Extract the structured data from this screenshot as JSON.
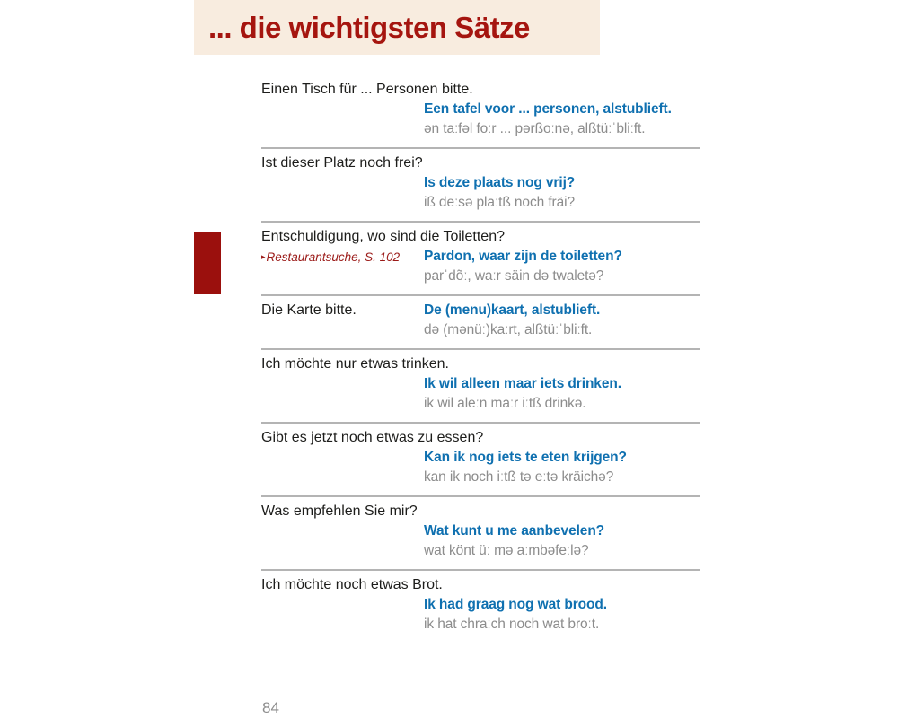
{
  "header": {
    "title": "... die wichtigsten Sätze"
  },
  "footer": {
    "page_number": "84"
  },
  "icons": {
    "crossref_arrow": "▸"
  },
  "colors": {
    "banner_bg": "#f8ecdf",
    "title_red": "#a5150f",
    "tab_red": "#9b100d",
    "dutch_blue": "#0f70b0",
    "phonetic_gray": "#8c8c8c",
    "german_black": "#1d1d1b",
    "divider_gray": "#b4b4b4",
    "crossref_red": "#9b1a18"
  },
  "phrases": [
    {
      "german": "Einen Tisch für ... Personen bitte.",
      "dutch": "Een tafel voor ... personen, alstublieft.",
      "phonetic": "ən taːfəl foːr ... pərßoːnə, alßtüːˈbliːft."
    },
    {
      "german": "Ist dieser Platz noch frei?",
      "dutch": "Is deze plaats nog vrij?",
      "phonetic": "iß deːsə plaːtß noch fräi?"
    },
    {
      "german": "Entschuldigung, wo sind die Toiletten?",
      "crossref": "Restaurantsuche, S. 102",
      "dutch": "Pardon, waar zijn de toiletten?",
      "phonetic": "parˈdõː, waːr säin də twaletə?"
    },
    {
      "german": "Die Karte bitte.",
      "inline": true,
      "dutch": "De (menu)kaart, alstublieft.",
      "phonetic": "də (mənüː)kaːrt, alßtüːˈbliːft."
    },
    {
      "german": "Ich möchte nur etwas trinken.",
      "dutch": "Ik wil alleen maar iets drinken.",
      "phonetic": "ik wil aleːn maːr iːtß drinkə."
    },
    {
      "german": "Gibt es jetzt noch etwas zu essen?",
      "dutch": "Kan ik nog iets te eten krijgen?",
      "phonetic": "kan ik noch iːtß tə eːtə kräichə?"
    },
    {
      "german": "Was empfehlen Sie mir?",
      "dutch": "Wat kunt u me aanbevelen?",
      "phonetic": "wat könt üː mə aːmbəfeːlə?"
    },
    {
      "german": "Ich möchte noch etwas Brot.",
      "dutch": "Ik had graag nog wat brood.",
      "phonetic": "ik hat chraːch noch wat broːt."
    }
  ]
}
